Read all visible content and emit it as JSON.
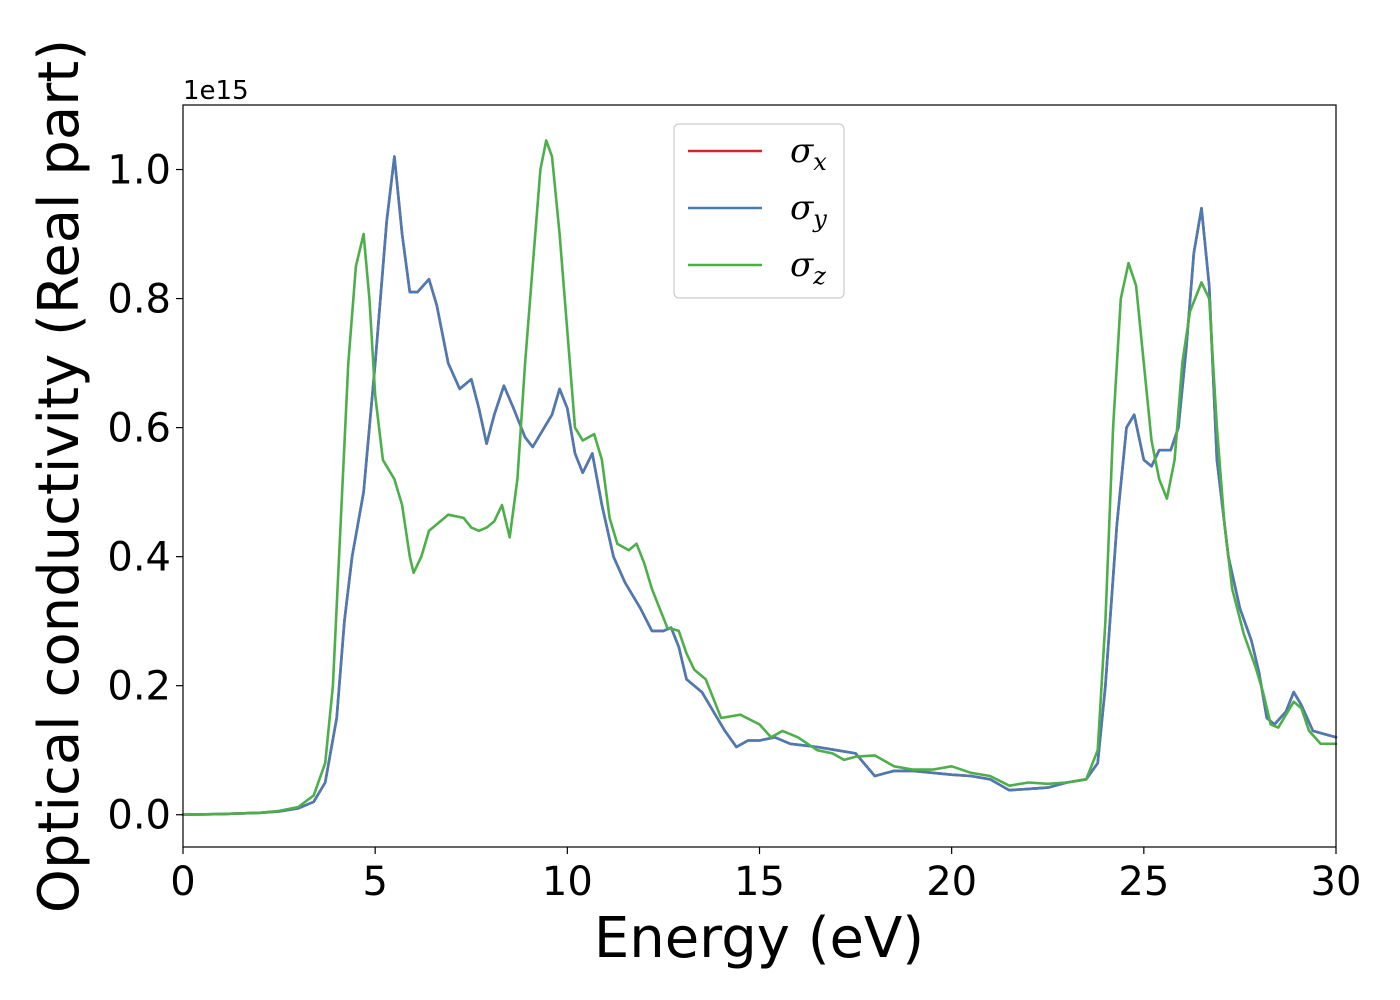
{
  "chart_data": {
    "type": "line",
    "title": "",
    "xlabel": "Energy (eV)",
    "ylabel": "Optical conductivity (Real part)",
    "y_exponent_label": "1e15",
    "xlim": [
      0,
      30
    ],
    "ylim": [
      -0.05,
      1.1
    ],
    "x_ticks": [
      0,
      5,
      10,
      15,
      20,
      25,
      30
    ],
    "x_tick_labels": [
      "0",
      "5",
      "10",
      "15",
      "20",
      "25",
      "30"
    ],
    "y_ticks": [
      0.0,
      0.2,
      0.4,
      0.6,
      0.8,
      1.0
    ],
    "y_tick_labels": [
      "0.0",
      "0.2",
      "0.4",
      "0.6",
      "0.8",
      "1.0"
    ],
    "grid": false,
    "legend_position": "top-center",
    "series": [
      {
        "name": "σx",
        "legend_symbol": "σ",
        "legend_sub": "x",
        "color": "#d62728",
        "points": [
          [
            0,
            0
          ],
          [
            1,
            0.001
          ],
          [
            2,
            0.003
          ],
          [
            2.5,
            0.005
          ],
          [
            3,
            0.01
          ],
          [
            3.4,
            0.02
          ],
          [
            3.7,
            0.05
          ],
          [
            4.0,
            0.15
          ],
          [
            4.2,
            0.3
          ],
          [
            4.4,
            0.4
          ],
          [
            4.7,
            0.5
          ],
          [
            5.0,
            0.7
          ],
          [
            5.3,
            0.92
          ],
          [
            5.5,
            1.02
          ],
          [
            5.7,
            0.9
          ],
          [
            5.9,
            0.81
          ],
          [
            6.1,
            0.81
          ],
          [
            6.4,
            0.83
          ],
          [
            6.6,
            0.79
          ],
          [
            6.9,
            0.7
          ],
          [
            7.2,
            0.66
          ],
          [
            7.5,
            0.675
          ],
          [
            7.7,
            0.63
          ],
          [
            7.9,
            0.575
          ],
          [
            8.1,
            0.62
          ],
          [
            8.35,
            0.665
          ],
          [
            8.6,
            0.63
          ],
          [
            8.9,
            0.585
          ],
          [
            9.1,
            0.57
          ],
          [
            9.4,
            0.6
          ],
          [
            9.6,
            0.62
          ],
          [
            9.8,
            0.66
          ],
          [
            10.0,
            0.63
          ],
          [
            10.2,
            0.56
          ],
          [
            10.4,
            0.53
          ],
          [
            10.65,
            0.56
          ],
          [
            10.9,
            0.48
          ],
          [
            11.2,
            0.4
          ],
          [
            11.5,
            0.36
          ],
          [
            11.9,
            0.32
          ],
          [
            12.2,
            0.285
          ],
          [
            12.5,
            0.285
          ],
          [
            12.7,
            0.29
          ],
          [
            12.9,
            0.26
          ],
          [
            13.1,
            0.21
          ],
          [
            13.5,
            0.19
          ],
          [
            13.8,
            0.16
          ],
          [
            14.1,
            0.13
          ],
          [
            14.4,
            0.105
          ],
          [
            14.7,
            0.115
          ],
          [
            15.0,
            0.115
          ],
          [
            15.4,
            0.12
          ],
          [
            15.8,
            0.11
          ],
          [
            16.5,
            0.105
          ],
          [
            17.0,
            0.1
          ],
          [
            17.5,
            0.095
          ],
          [
            18.0,
            0.06
          ],
          [
            18.5,
            0.068
          ],
          [
            19.0,
            0.068
          ],
          [
            19.5,
            0.065
          ],
          [
            20.0,
            0.062
          ],
          [
            20.5,
            0.06
          ],
          [
            21.0,
            0.055
          ],
          [
            21.5,
            0.038
          ],
          [
            22.0,
            0.04
          ],
          [
            22.5,
            0.042
          ],
          [
            23.0,
            0.05
          ],
          [
            23.5,
            0.055
          ],
          [
            23.8,
            0.08
          ],
          [
            24.0,
            0.2
          ],
          [
            24.3,
            0.45
          ],
          [
            24.55,
            0.6
          ],
          [
            24.75,
            0.62
          ],
          [
            25.0,
            0.55
          ],
          [
            25.2,
            0.54
          ],
          [
            25.4,
            0.565
          ],
          [
            25.7,
            0.565
          ],
          [
            25.9,
            0.6
          ],
          [
            26.1,
            0.72
          ],
          [
            26.3,
            0.87
          ],
          [
            26.5,
            0.94
          ],
          [
            26.7,
            0.82
          ],
          [
            26.9,
            0.55
          ],
          [
            27.2,
            0.4
          ],
          [
            27.5,
            0.32
          ],
          [
            27.8,
            0.27
          ],
          [
            28.0,
            0.22
          ],
          [
            28.2,
            0.15
          ],
          [
            28.4,
            0.14
          ],
          [
            28.7,
            0.16
          ],
          [
            28.9,
            0.19
          ],
          [
            29.1,
            0.17
          ],
          [
            29.4,
            0.13
          ],
          [
            29.7,
            0.125
          ],
          [
            30,
            0.12
          ]
        ]
      },
      {
        "name": "σy",
        "legend_symbol": "σ",
        "legend_sub": "y",
        "color": "#4a7bb5",
        "points": [
          [
            0,
            0
          ],
          [
            1,
            0.001
          ],
          [
            2,
            0.003
          ],
          [
            2.5,
            0.005
          ],
          [
            3,
            0.01
          ],
          [
            3.4,
            0.02
          ],
          [
            3.7,
            0.05
          ],
          [
            4.0,
            0.15
          ],
          [
            4.2,
            0.3
          ],
          [
            4.4,
            0.4
          ],
          [
            4.7,
            0.5
          ],
          [
            5.0,
            0.7
          ],
          [
            5.3,
            0.92
          ],
          [
            5.5,
            1.02
          ],
          [
            5.7,
            0.9
          ],
          [
            5.9,
            0.81
          ],
          [
            6.1,
            0.81
          ],
          [
            6.4,
            0.83
          ],
          [
            6.6,
            0.79
          ],
          [
            6.9,
            0.7
          ],
          [
            7.2,
            0.66
          ],
          [
            7.5,
            0.675
          ],
          [
            7.7,
            0.63
          ],
          [
            7.9,
            0.575
          ],
          [
            8.1,
            0.62
          ],
          [
            8.35,
            0.665
          ],
          [
            8.6,
            0.63
          ],
          [
            8.9,
            0.585
          ],
          [
            9.1,
            0.57
          ],
          [
            9.4,
            0.6
          ],
          [
            9.6,
            0.62
          ],
          [
            9.8,
            0.66
          ],
          [
            10.0,
            0.63
          ],
          [
            10.2,
            0.56
          ],
          [
            10.4,
            0.53
          ],
          [
            10.65,
            0.56
          ],
          [
            10.9,
            0.48
          ],
          [
            11.2,
            0.4
          ],
          [
            11.5,
            0.36
          ],
          [
            11.9,
            0.32
          ],
          [
            12.2,
            0.285
          ],
          [
            12.5,
            0.285
          ],
          [
            12.7,
            0.29
          ],
          [
            12.9,
            0.26
          ],
          [
            13.1,
            0.21
          ],
          [
            13.5,
            0.19
          ],
          [
            13.8,
            0.16
          ],
          [
            14.1,
            0.13
          ],
          [
            14.4,
            0.105
          ],
          [
            14.7,
            0.115
          ],
          [
            15.0,
            0.115
          ],
          [
            15.4,
            0.12
          ],
          [
            15.8,
            0.11
          ],
          [
            16.5,
            0.105
          ],
          [
            17.0,
            0.1
          ],
          [
            17.5,
            0.095
          ],
          [
            18.0,
            0.06
          ],
          [
            18.5,
            0.068
          ],
          [
            19.0,
            0.068
          ],
          [
            19.5,
            0.065
          ],
          [
            20.0,
            0.062
          ],
          [
            20.5,
            0.06
          ],
          [
            21.0,
            0.055
          ],
          [
            21.5,
            0.038
          ],
          [
            22.0,
            0.04
          ],
          [
            22.5,
            0.042
          ],
          [
            23.0,
            0.05
          ],
          [
            23.5,
            0.055
          ],
          [
            23.8,
            0.08
          ],
          [
            24.0,
            0.2
          ],
          [
            24.3,
            0.45
          ],
          [
            24.55,
            0.6
          ],
          [
            24.75,
            0.62
          ],
          [
            25.0,
            0.55
          ],
          [
            25.2,
            0.54
          ],
          [
            25.4,
            0.565
          ],
          [
            25.7,
            0.565
          ],
          [
            25.9,
            0.6
          ],
          [
            26.1,
            0.72
          ],
          [
            26.3,
            0.87
          ],
          [
            26.5,
            0.94
          ],
          [
            26.7,
            0.82
          ],
          [
            26.9,
            0.55
          ],
          [
            27.2,
            0.4
          ],
          [
            27.5,
            0.32
          ],
          [
            27.8,
            0.27
          ],
          [
            28.0,
            0.22
          ],
          [
            28.2,
            0.15
          ],
          [
            28.4,
            0.14
          ],
          [
            28.7,
            0.16
          ],
          [
            28.9,
            0.19
          ],
          [
            29.1,
            0.17
          ],
          [
            29.4,
            0.13
          ],
          [
            29.7,
            0.125
          ],
          [
            30,
            0.12
          ]
        ]
      },
      {
        "name": "σz",
        "legend_symbol": "σ",
        "legend_sub": "z",
        "color": "#4daf4a",
        "points": [
          [
            0,
            0
          ],
          [
            1,
            0.001
          ],
          [
            2,
            0.003
          ],
          [
            2.5,
            0.006
          ],
          [
            3,
            0.012
          ],
          [
            3.4,
            0.03
          ],
          [
            3.7,
            0.08
          ],
          [
            3.9,
            0.2
          ],
          [
            4.1,
            0.45
          ],
          [
            4.3,
            0.7
          ],
          [
            4.5,
            0.85
          ],
          [
            4.7,
            0.9
          ],
          [
            4.85,
            0.8
          ],
          [
            5.0,
            0.65
          ],
          [
            5.2,
            0.55
          ],
          [
            5.5,
            0.52
          ],
          [
            5.7,
            0.48
          ],
          [
            5.9,
            0.4
          ],
          [
            6.0,
            0.375
          ],
          [
            6.2,
            0.4
          ],
          [
            6.4,
            0.44
          ],
          [
            6.6,
            0.45
          ],
          [
            6.9,
            0.465
          ],
          [
            7.3,
            0.46
          ],
          [
            7.5,
            0.445
          ],
          [
            7.7,
            0.44
          ],
          [
            7.9,
            0.445
          ],
          [
            8.1,
            0.455
          ],
          [
            8.3,
            0.48
          ],
          [
            8.5,
            0.43
          ],
          [
            8.7,
            0.52
          ],
          [
            8.9,
            0.7
          ],
          [
            9.1,
            0.85
          ],
          [
            9.3,
            1.0
          ],
          [
            9.45,
            1.045
          ],
          [
            9.6,
            1.02
          ],
          [
            9.8,
            0.9
          ],
          [
            10.0,
            0.75
          ],
          [
            10.2,
            0.6
          ],
          [
            10.4,
            0.58
          ],
          [
            10.7,
            0.59
          ],
          [
            10.9,
            0.55
          ],
          [
            11.1,
            0.46
          ],
          [
            11.3,
            0.42
          ],
          [
            11.6,
            0.41
          ],
          [
            11.8,
            0.42
          ],
          [
            12.0,
            0.39
          ],
          [
            12.2,
            0.35
          ],
          [
            12.4,
            0.32
          ],
          [
            12.6,
            0.29
          ],
          [
            12.9,
            0.285
          ],
          [
            13.1,
            0.25
          ],
          [
            13.3,
            0.225
          ],
          [
            13.6,
            0.21
          ],
          [
            14.0,
            0.15
          ],
          [
            14.5,
            0.155
          ],
          [
            15.0,
            0.14
          ],
          [
            15.3,
            0.12
          ],
          [
            15.6,
            0.13
          ],
          [
            16.0,
            0.12
          ],
          [
            16.5,
            0.1
          ],
          [
            16.9,
            0.095
          ],
          [
            17.2,
            0.085
          ],
          [
            17.5,
            0.09
          ],
          [
            18.0,
            0.092
          ],
          [
            18.5,
            0.075
          ],
          [
            19.0,
            0.07
          ],
          [
            19.5,
            0.07
          ],
          [
            20.0,
            0.075
          ],
          [
            20.5,
            0.065
          ],
          [
            21.0,
            0.06
          ],
          [
            21.5,
            0.045
          ],
          [
            22.0,
            0.05
          ],
          [
            22.5,
            0.048
          ],
          [
            23.0,
            0.05
          ],
          [
            23.5,
            0.055
          ],
          [
            23.8,
            0.1
          ],
          [
            24.0,
            0.3
          ],
          [
            24.2,
            0.6
          ],
          [
            24.4,
            0.8
          ],
          [
            24.6,
            0.855
          ],
          [
            24.8,
            0.82
          ],
          [
            25.0,
            0.7
          ],
          [
            25.2,
            0.58
          ],
          [
            25.4,
            0.52
          ],
          [
            25.6,
            0.49
          ],
          [
            25.8,
            0.55
          ],
          [
            26.0,
            0.7
          ],
          [
            26.2,
            0.78
          ],
          [
            26.5,
            0.825
          ],
          [
            26.7,
            0.8
          ],
          [
            26.9,
            0.6
          ],
          [
            27.1,
            0.45
          ],
          [
            27.3,
            0.35
          ],
          [
            27.6,
            0.28
          ],
          [
            27.9,
            0.23
          ],
          [
            28.1,
            0.19
          ],
          [
            28.3,
            0.14
          ],
          [
            28.5,
            0.135
          ],
          [
            28.7,
            0.155
          ],
          [
            28.9,
            0.175
          ],
          [
            29.1,
            0.165
          ],
          [
            29.3,
            0.13
          ],
          [
            29.6,
            0.11
          ],
          [
            30,
            0.11
          ]
        ]
      }
    ]
  }
}
